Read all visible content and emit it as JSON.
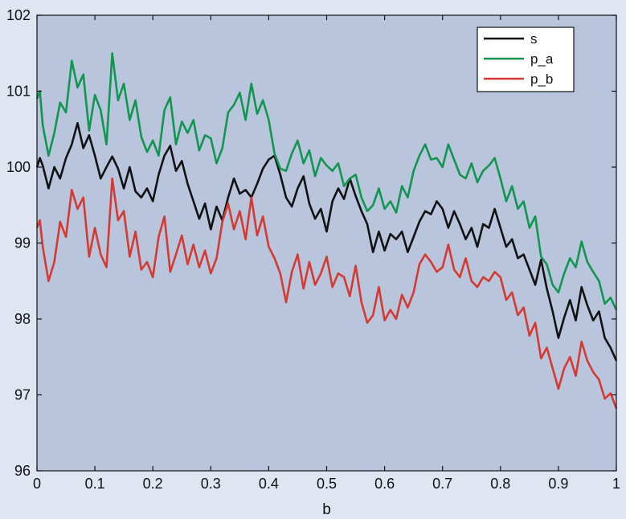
{
  "colors": {
    "page_background": "#dfe5f1",
    "plot_background": "#b9c5dc",
    "legend_background": "#ffffff",
    "axis": "#111111"
  },
  "chart_data": {
    "type": "line",
    "title": "",
    "xlabel": "b",
    "ylabel": "",
    "xlim": [
      0,
      1
    ],
    "ylim": [
      96,
      102
    ],
    "grid": false,
    "legend_position": "top-right",
    "x_ticks": [
      0,
      0.1,
      0.2,
      0.3,
      0.4,
      0.5,
      0.6,
      0.7,
      0.8,
      0.9,
      1
    ],
    "x_tick_labels": [
      "0",
      "0.1",
      "0.2",
      "0.3",
      "0.4",
      "0.5",
      "0.6",
      "0.7",
      "0.8",
      "0.9",
      "1"
    ],
    "y_ticks": [
      96,
      97,
      98,
      99,
      100,
      101,
      102
    ],
    "y_tick_labels": [
      "96",
      "97",
      "98",
      "99",
      "100",
      "101",
      "102"
    ],
    "series": [
      {
        "name": "s",
        "color": "#111111",
        "x": [
          0,
          0.005,
          0.01,
          0.02,
          0.03,
          0.04,
          0.05,
          0.06,
          0.07,
          0.08,
          0.09,
          0.1,
          0.11,
          0.12,
          0.13,
          0.14,
          0.15,
          0.16,
          0.17,
          0.18,
          0.19,
          0.2,
          0.21,
          0.22,
          0.23,
          0.24,
          0.25,
          0.26,
          0.27,
          0.28,
          0.29,
          0.3,
          0.31,
          0.32,
          0.33,
          0.34,
          0.35,
          0.36,
          0.37,
          0.38,
          0.39,
          0.4,
          0.41,
          0.42,
          0.43,
          0.44,
          0.45,
          0.46,
          0.47,
          0.48,
          0.49,
          0.5,
          0.51,
          0.52,
          0.53,
          0.54,
          0.55,
          0.56,
          0.57,
          0.58,
          0.59,
          0.6,
          0.61,
          0.62,
          0.63,
          0.64,
          0.65,
          0.66,
          0.67,
          0.68,
          0.69,
          0.7,
          0.71,
          0.72,
          0.73,
          0.74,
          0.75,
          0.76,
          0.77,
          0.78,
          0.79,
          0.8,
          0.81,
          0.82,
          0.83,
          0.84,
          0.85,
          0.86,
          0.87,
          0.88,
          0.89,
          0.9,
          0.91,
          0.92,
          0.93,
          0.94,
          0.95,
          0.96,
          0.97,
          0.98,
          0.99,
          1.0
        ],
        "y": [
          100.0,
          100.12,
          100.02,
          99.72,
          100.0,
          99.85,
          100.12,
          100.3,
          100.58,
          100.25,
          100.42,
          100.15,
          99.85,
          100.0,
          100.14,
          99.98,
          99.72,
          100.0,
          99.68,
          99.6,
          99.72,
          99.55,
          99.9,
          100.15,
          100.28,
          99.95,
          100.08,
          99.78,
          99.55,
          99.32,
          99.52,
          99.18,
          99.48,
          99.3,
          99.6,
          99.85,
          99.65,
          99.7,
          99.6,
          99.78,
          99.98,
          100.1,
          100.15,
          99.9,
          99.6,
          99.48,
          99.72,
          99.88,
          99.52,
          99.32,
          99.45,
          99.15,
          99.55,
          99.72,
          99.58,
          99.85,
          99.62,
          99.42,
          99.25,
          98.88,
          99.15,
          98.9,
          99.12,
          99.05,
          99.15,
          98.88,
          99.08,
          99.28,
          99.42,
          99.38,
          99.55,
          99.45,
          99.2,
          99.42,
          99.25,
          99.05,
          99.2,
          98.95,
          99.25,
          99.2,
          99.45,
          99.2,
          98.95,
          99.05,
          98.8,
          98.85,
          98.65,
          98.45,
          98.78,
          98.4,
          98.1,
          97.75,
          98.02,
          98.25,
          97.98,
          98.42,
          98.18,
          97.98,
          98.1,
          97.75,
          97.62,
          97.45
        ]
      },
      {
        "name": "p_a",
        "color": "#119650",
        "x": [
          0,
          0.005,
          0.01,
          0.02,
          0.03,
          0.04,
          0.05,
          0.06,
          0.07,
          0.08,
          0.09,
          0.1,
          0.11,
          0.12,
          0.13,
          0.14,
          0.15,
          0.16,
          0.17,
          0.18,
          0.19,
          0.2,
          0.21,
          0.22,
          0.23,
          0.24,
          0.25,
          0.26,
          0.27,
          0.28,
          0.29,
          0.3,
          0.31,
          0.32,
          0.33,
          0.34,
          0.35,
          0.36,
          0.37,
          0.38,
          0.39,
          0.4,
          0.41,
          0.42,
          0.43,
          0.44,
          0.45,
          0.46,
          0.47,
          0.48,
          0.49,
          0.5,
          0.51,
          0.52,
          0.53,
          0.54,
          0.55,
          0.56,
          0.57,
          0.58,
          0.59,
          0.6,
          0.61,
          0.62,
          0.63,
          0.64,
          0.65,
          0.66,
          0.67,
          0.68,
          0.69,
          0.7,
          0.71,
          0.72,
          0.73,
          0.74,
          0.75,
          0.76,
          0.77,
          0.78,
          0.79,
          0.8,
          0.81,
          0.82,
          0.83,
          0.84,
          0.85,
          0.86,
          0.87,
          0.88,
          0.89,
          0.9,
          0.91,
          0.92,
          0.93,
          0.94,
          0.95,
          0.96,
          0.97,
          0.98,
          0.99,
          1.0
        ],
        "y": [
          100.9,
          101.0,
          100.55,
          100.15,
          100.45,
          100.85,
          100.72,
          101.4,
          101.05,
          101.22,
          100.48,
          100.95,
          100.75,
          100.3,
          101.5,
          100.88,
          101.1,
          100.62,
          100.88,
          100.4,
          100.2,
          100.35,
          100.15,
          100.75,
          100.92,
          100.3,
          100.6,
          100.45,
          100.62,
          100.22,
          100.42,
          100.38,
          100.05,
          100.25,
          100.72,
          100.82,
          100.98,
          100.62,
          101.1,
          100.7,
          100.88,
          100.62,
          100.18,
          99.98,
          99.95,
          100.18,
          100.35,
          100.05,
          100.22,
          99.88,
          100.12,
          100.02,
          99.95,
          100.05,
          99.75,
          99.85,
          99.9,
          99.6,
          99.42,
          99.5,
          99.72,
          99.45,
          99.55,
          99.4,
          99.75,
          99.6,
          99.95,
          100.15,
          100.3,
          100.1,
          100.12,
          100.0,
          100.3,
          100.1,
          99.9,
          99.85,
          100.05,
          99.8,
          99.95,
          100.02,
          100.12,
          99.85,
          99.55,
          99.75,
          99.45,
          99.55,
          99.2,
          99.35,
          98.82,
          98.72,
          98.45,
          98.35,
          98.6,
          98.8,
          98.68,
          99.02,
          98.75,
          98.62,
          98.5,
          98.2,
          98.28,
          98.12
        ]
      },
      {
        "name": "p_b",
        "color": "#d53a32",
        "x": [
          0,
          0.005,
          0.01,
          0.02,
          0.03,
          0.04,
          0.05,
          0.06,
          0.07,
          0.08,
          0.09,
          0.1,
          0.11,
          0.12,
          0.13,
          0.14,
          0.15,
          0.16,
          0.17,
          0.18,
          0.19,
          0.2,
          0.21,
          0.22,
          0.23,
          0.24,
          0.25,
          0.26,
          0.27,
          0.28,
          0.29,
          0.3,
          0.31,
          0.32,
          0.33,
          0.34,
          0.35,
          0.36,
          0.37,
          0.38,
          0.39,
          0.4,
          0.41,
          0.42,
          0.43,
          0.44,
          0.45,
          0.46,
          0.47,
          0.48,
          0.49,
          0.5,
          0.51,
          0.52,
          0.53,
          0.54,
          0.55,
          0.56,
          0.57,
          0.58,
          0.59,
          0.6,
          0.61,
          0.62,
          0.63,
          0.64,
          0.65,
          0.66,
          0.67,
          0.68,
          0.69,
          0.7,
          0.71,
          0.72,
          0.73,
          0.74,
          0.75,
          0.76,
          0.77,
          0.78,
          0.79,
          0.8,
          0.81,
          0.82,
          0.83,
          0.84,
          0.85,
          0.86,
          0.87,
          0.88,
          0.89,
          0.9,
          0.91,
          0.92,
          0.93,
          0.94,
          0.95,
          0.96,
          0.97,
          0.98,
          0.99,
          1.0
        ],
        "y": [
          99.2,
          99.3,
          98.95,
          98.5,
          98.75,
          99.28,
          99.08,
          99.7,
          99.45,
          99.6,
          98.82,
          99.2,
          98.85,
          98.68,
          99.85,
          99.3,
          99.42,
          98.82,
          99.15,
          98.65,
          98.75,
          98.55,
          99.08,
          99.35,
          98.62,
          98.85,
          99.1,
          98.72,
          98.98,
          98.68,
          98.9,
          98.6,
          98.8,
          99.28,
          99.52,
          99.18,
          99.42,
          99.05,
          99.6,
          99.1,
          99.35,
          98.95,
          98.8,
          98.6,
          98.22,
          98.62,
          98.85,
          98.4,
          98.75,
          98.45,
          98.6,
          98.82,
          98.42,
          98.6,
          98.55,
          98.3,
          98.7,
          98.22,
          97.95,
          98.05,
          98.42,
          97.98,
          98.12,
          98.0,
          98.32,
          98.15,
          98.35,
          98.72,
          98.85,
          98.75,
          98.62,
          98.68,
          98.98,
          98.65,
          98.55,
          98.8,
          98.5,
          98.42,
          98.55,
          98.5,
          98.62,
          98.55,
          98.25,
          98.35,
          98.05,
          98.15,
          97.78,
          97.95,
          97.48,
          97.62,
          97.35,
          97.08,
          97.35,
          97.5,
          97.25,
          97.7,
          97.45,
          97.3,
          97.2,
          96.95,
          97.02,
          96.82
        ]
      }
    ]
  }
}
